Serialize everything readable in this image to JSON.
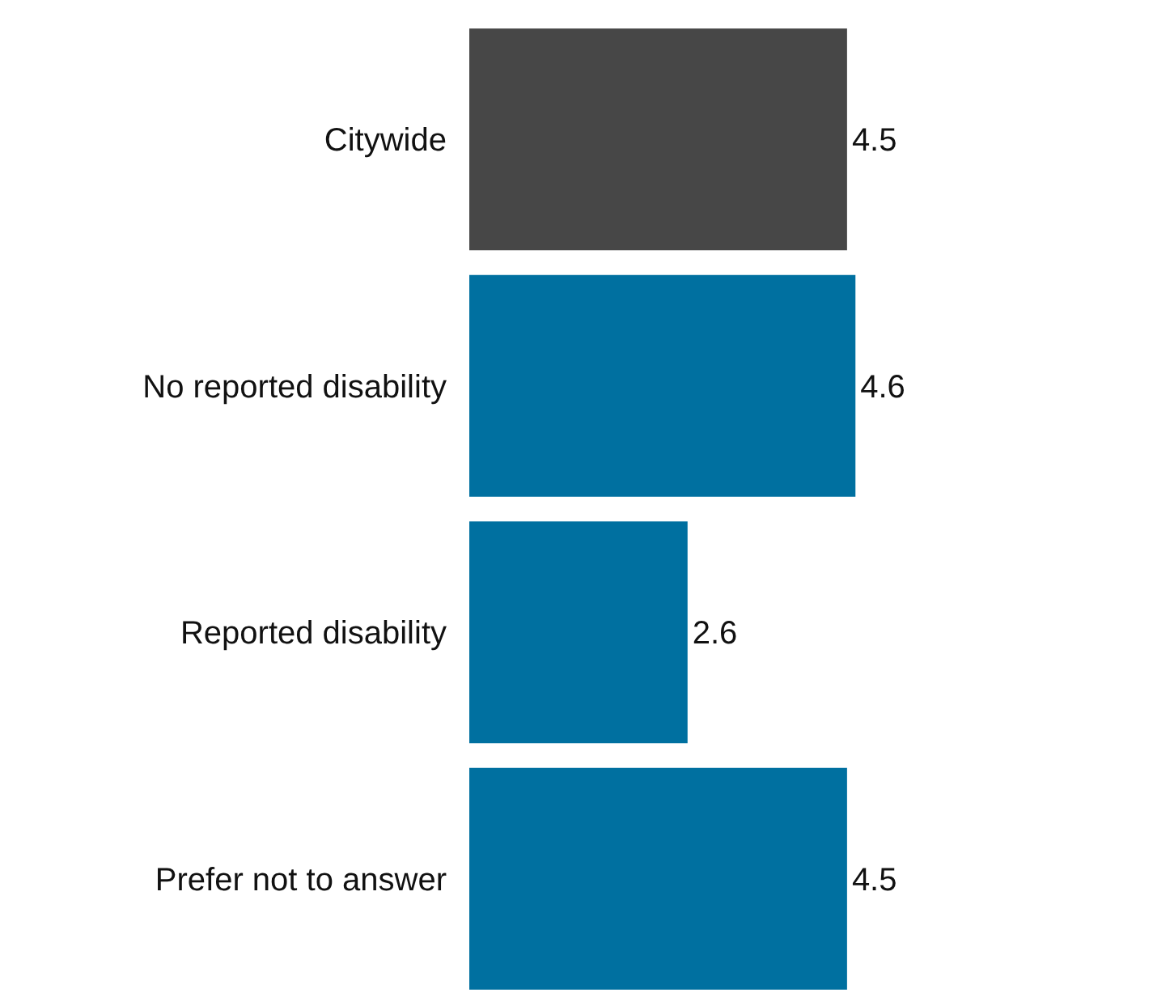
{
  "chart_data": {
    "type": "bar",
    "orientation": "horizontal",
    "categories": [
      "Citywide",
      "No reported disability",
      "Reported disability",
      "Prefer not to answer"
    ],
    "values": [
      4.5,
      4.6,
      2.6,
      4.5
    ],
    "colors": [
      "#474747",
      "#0070a0",
      "#0070a0",
      "#0070a0"
    ],
    "data_labels": true
  }
}
